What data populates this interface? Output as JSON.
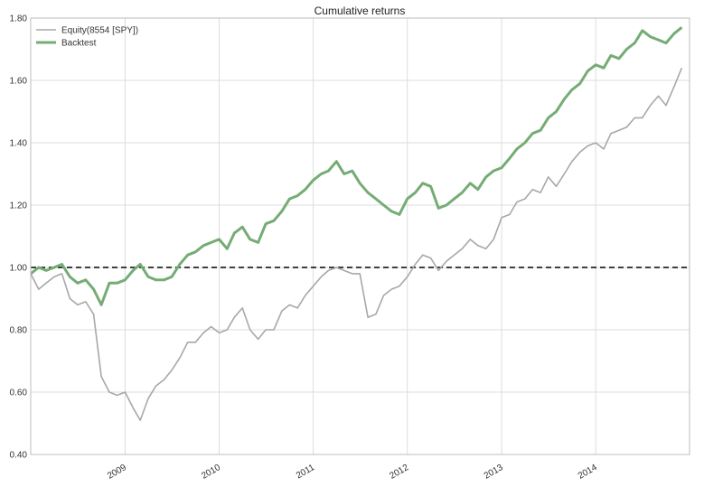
{
  "chart_data": {
    "type": "line",
    "title": "Cumulative returns",
    "xlabel": "",
    "ylabel": "",
    "xlim": [
      "2008-01-01",
      "2014-12-31"
    ],
    "ylim": [
      0.4,
      1.8
    ],
    "y_ticks": [
      0.4,
      0.6,
      0.8,
      1.0,
      1.2,
      1.4,
      1.6,
      1.8
    ],
    "y_tick_labels": [
      "0.40",
      "0.60",
      "0.80",
      "1.00",
      "1.20",
      "1.40",
      "1.60",
      "1.80"
    ],
    "x_ticks": [
      "2009-01-01",
      "2010-01-01",
      "2011-01-01",
      "2012-01-01",
      "2013-01-01",
      "2014-01-01"
    ],
    "x_tick_labels": [
      "2009",
      "2010",
      "2011",
      "2012",
      "2013",
      "2014"
    ],
    "grid": true,
    "legend_position": "top-left",
    "reference_line": {
      "y": 1.0,
      "style": "dashed",
      "color": "#000000"
    },
    "series": [
      {
        "name": "Equity(8554 [SPY])",
        "color": "#a8a8a8",
        "x": [
          "2008-01-01",
          "2008-02-01",
          "2008-03-01",
          "2008-04-01",
          "2008-05-01",
          "2008-06-01",
          "2008-07-01",
          "2008-08-01",
          "2008-09-01",
          "2008-10-01",
          "2008-11-01",
          "2008-12-01",
          "2009-01-01",
          "2009-02-01",
          "2009-03-01",
          "2009-04-01",
          "2009-05-01",
          "2009-06-01",
          "2009-07-01",
          "2009-08-01",
          "2009-09-01",
          "2009-10-01",
          "2009-11-01",
          "2009-12-01",
          "2010-01-01",
          "2010-02-01",
          "2010-03-01",
          "2010-04-01",
          "2010-05-01",
          "2010-06-01",
          "2010-07-01",
          "2010-08-01",
          "2010-09-01",
          "2010-10-01",
          "2010-11-01",
          "2010-12-01",
          "2011-01-01",
          "2011-02-01",
          "2011-03-01",
          "2011-04-01",
          "2011-05-01",
          "2011-06-01",
          "2011-07-01",
          "2011-08-01",
          "2011-09-01",
          "2011-10-01",
          "2011-11-01",
          "2011-12-01",
          "2012-01-01",
          "2012-02-01",
          "2012-03-01",
          "2012-04-01",
          "2012-05-01",
          "2012-06-01",
          "2012-07-01",
          "2012-08-01",
          "2012-09-01",
          "2012-10-01",
          "2012-11-01",
          "2012-12-01",
          "2013-01-01",
          "2013-02-01",
          "2013-03-01",
          "2013-04-01",
          "2013-05-01",
          "2013-06-01",
          "2013-07-01",
          "2013-08-01",
          "2013-09-01",
          "2013-10-01",
          "2013-11-01",
          "2013-12-01",
          "2014-01-01",
          "2014-02-01",
          "2014-03-01",
          "2014-04-01",
          "2014-05-01",
          "2014-06-01",
          "2014-07-01",
          "2014-08-01",
          "2014-09-01",
          "2014-10-01",
          "2014-11-01",
          "2014-12-01"
        ],
        "values": [
          0.98,
          0.93,
          0.95,
          0.97,
          0.98,
          0.9,
          0.88,
          0.89,
          0.85,
          0.65,
          0.6,
          0.59,
          0.6,
          0.55,
          0.51,
          0.58,
          0.62,
          0.64,
          0.67,
          0.71,
          0.76,
          0.76,
          0.79,
          0.81,
          0.79,
          0.8,
          0.84,
          0.87,
          0.8,
          0.77,
          0.8,
          0.8,
          0.86,
          0.88,
          0.87,
          0.91,
          0.94,
          0.97,
          0.99,
          1.0,
          0.99,
          0.98,
          0.98,
          0.84,
          0.85,
          0.91,
          0.93,
          0.94,
          0.97,
          1.01,
          1.04,
          1.03,
          0.99,
          1.02,
          1.04,
          1.06,
          1.09,
          1.07,
          1.06,
          1.09,
          1.16,
          1.17,
          1.21,
          1.22,
          1.25,
          1.24,
          1.29,
          1.26,
          1.3,
          1.34,
          1.37,
          1.39,
          1.4,
          1.38,
          1.43,
          1.44,
          1.45,
          1.48,
          1.48,
          1.52,
          1.55,
          1.52,
          1.58,
          1.64
        ]
      },
      {
        "name": "Backtest",
        "color": "#75ac75",
        "x": [
          "2008-01-01",
          "2008-02-01",
          "2008-03-01",
          "2008-04-01",
          "2008-05-01",
          "2008-06-01",
          "2008-07-01",
          "2008-08-01",
          "2008-09-01",
          "2008-10-01",
          "2008-11-01",
          "2008-12-01",
          "2009-01-01",
          "2009-02-01",
          "2009-03-01",
          "2009-04-01",
          "2009-05-01",
          "2009-06-01",
          "2009-07-01",
          "2009-08-01",
          "2009-09-01",
          "2009-10-01",
          "2009-11-01",
          "2009-12-01",
          "2010-01-01",
          "2010-02-01",
          "2010-03-01",
          "2010-04-01",
          "2010-05-01",
          "2010-06-01",
          "2010-07-01",
          "2010-08-01",
          "2010-09-01",
          "2010-10-01",
          "2010-11-01",
          "2010-12-01",
          "2011-01-01",
          "2011-02-01",
          "2011-03-01",
          "2011-04-01",
          "2011-05-01",
          "2011-06-01",
          "2011-07-01",
          "2011-08-01",
          "2011-09-01",
          "2011-10-01",
          "2011-11-01",
          "2011-12-01",
          "2012-01-01",
          "2012-02-01",
          "2012-03-01",
          "2012-04-01",
          "2012-05-01",
          "2012-06-01",
          "2012-07-01",
          "2012-08-01",
          "2012-09-01",
          "2012-10-01",
          "2012-11-01",
          "2012-12-01",
          "2013-01-01",
          "2013-02-01",
          "2013-03-01",
          "2013-04-01",
          "2013-05-01",
          "2013-06-01",
          "2013-07-01",
          "2013-08-01",
          "2013-09-01",
          "2013-10-01",
          "2013-11-01",
          "2013-12-01",
          "2014-01-01",
          "2014-02-01",
          "2014-03-01",
          "2014-04-01",
          "2014-05-01",
          "2014-06-01",
          "2014-07-01",
          "2014-08-01",
          "2014-09-01",
          "2014-10-01",
          "2014-11-01",
          "2014-12-01"
        ],
        "values": [
          0.98,
          1.0,
          0.99,
          1.0,
          1.01,
          0.97,
          0.95,
          0.96,
          0.93,
          0.88,
          0.95,
          0.95,
          0.96,
          0.99,
          1.01,
          0.97,
          0.96,
          0.96,
          0.97,
          1.01,
          1.04,
          1.05,
          1.07,
          1.08,
          1.09,
          1.06,
          1.11,
          1.13,
          1.09,
          1.08,
          1.14,
          1.15,
          1.18,
          1.22,
          1.23,
          1.25,
          1.28,
          1.3,
          1.31,
          1.34,
          1.3,
          1.31,
          1.27,
          1.24,
          1.22,
          1.2,
          1.18,
          1.17,
          1.22,
          1.24,
          1.27,
          1.26,
          1.19,
          1.2,
          1.22,
          1.24,
          1.27,
          1.25,
          1.29,
          1.31,
          1.32,
          1.35,
          1.38,
          1.4,
          1.43,
          1.44,
          1.48,
          1.5,
          1.54,
          1.57,
          1.59,
          1.63,
          1.65,
          1.64,
          1.68,
          1.67,
          1.7,
          1.72,
          1.76,
          1.74,
          1.73,
          1.72,
          1.75,
          1.77
        ]
      }
    ]
  }
}
